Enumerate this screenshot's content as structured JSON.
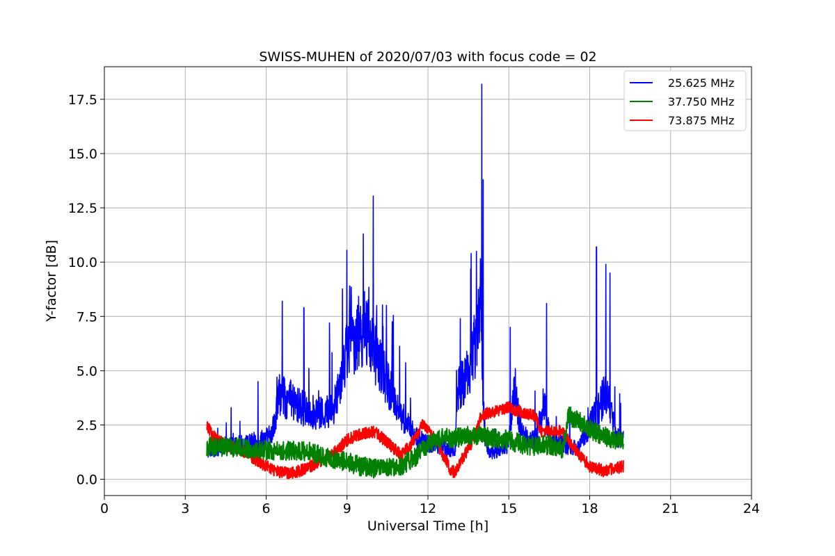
{
  "chart_data": {
    "type": "line",
    "title": "SWISS-MUHEN of 2020/07/03 with focus code = 02",
    "xlabel": "Universal Time [h]",
    "ylabel": "Y-factor [dB]",
    "xlim": [
      0,
      24
    ],
    "ylim": [
      -0.75,
      19.0
    ],
    "xticks": [
      0,
      3,
      6,
      9,
      12,
      15,
      18,
      21,
      24
    ],
    "xtick_labels": [
      "0",
      "3",
      "6",
      "9",
      "12",
      "15",
      "18",
      "21",
      "24"
    ],
    "yticks": [
      0.0,
      2.5,
      5.0,
      7.5,
      10.0,
      12.5,
      15.0,
      17.5
    ],
    "ytick_labels": [
      "0.0",
      "2.5",
      "5.0",
      "7.5",
      "10.0",
      "12.5",
      "15.0",
      "17.5"
    ],
    "grid": true,
    "legend_position": "top-right",
    "series": [
      {
        "name": "25.625 MHz",
        "color": "#0000ff",
        "noise": 0.9,
        "x": [
          3.8,
          4.5,
          5.5,
          6.2,
          6.5,
          6.6,
          7.0,
          7.5,
          8.0,
          8.5,
          8.8,
          9.0,
          9.3,
          9.6,
          9.7,
          10.0,
          10.5,
          11.0,
          11.5,
          12.0,
          12.5,
          13.0,
          13.1,
          13.5,
          13.8,
          13.95,
          14.0,
          14.1,
          14.3,
          14.8,
          15.0,
          15.2,
          15.5,
          16.0,
          16.3,
          16.5,
          17.0,
          17.5,
          18.0,
          18.2,
          18.4,
          18.6,
          18.8,
          19.0,
          19.25
        ],
        "y": [
          1.3,
          1.5,
          1.7,
          2.0,
          4.0,
          3.8,
          3.5,
          3.2,
          3.0,
          3.2,
          5.0,
          6.0,
          6.5,
          7.0,
          6.8,
          6.0,
          4.5,
          3.0,
          2.0,
          1.6,
          1.5,
          1.2,
          4.0,
          5.0,
          6.5,
          9.0,
          6.0,
          2.0,
          1.2,
          1.4,
          1.6,
          4.0,
          2.0,
          1.8,
          3.5,
          2.0,
          1.6,
          1.4,
          2.5,
          3.0,
          3.5,
          4.0,
          3.0,
          2.0,
          1.8
        ],
        "peaks": [
          [
            4.7,
            3.3
          ],
          [
            5.7,
            4.5
          ],
          [
            6.6,
            8.2
          ],
          [
            7.4,
            7.9
          ],
          [
            8.35,
            7.2
          ],
          [
            9.1,
            8.9
          ],
          [
            9.6,
            11.3
          ],
          [
            10.1,
            8.0
          ],
          [
            13.2,
            7.4
          ],
          [
            13.6,
            10.4
          ],
          [
            13.8,
            10.5
          ],
          [
            14.0,
            18.2
          ],
          [
            14.05,
            13.8
          ],
          [
            15.05,
            7.0
          ],
          [
            16.4,
            8.1
          ],
          [
            18.25,
            10.7
          ],
          [
            18.6,
            9.9
          ],
          [
            18.75,
            9.5
          ],
          [
            19.15,
            3.5
          ]
        ]
      },
      {
        "name": "37.750 MHz",
        "color": "#008000",
        "noise": 0.45,
        "x": [
          3.8,
          4.5,
          5.5,
          6.5,
          7.5,
          8.5,
          9.0,
          9.5,
          10.0,
          10.5,
          11.0,
          11.5,
          12.0,
          12.5,
          13.0,
          13.5,
          14.0,
          14.5,
          15.0,
          15.5,
          16.0,
          16.5,
          17.0,
          17.2,
          17.5,
          18.0,
          18.5,
          19.0,
          19.25
        ],
        "y": [
          1.5,
          1.5,
          1.4,
          1.3,
          1.3,
          0.9,
          0.8,
          0.6,
          0.5,
          0.5,
          0.6,
          1.0,
          1.6,
          1.9,
          1.9,
          2.0,
          2.0,
          1.9,
          1.8,
          1.6,
          1.5,
          1.6,
          1.4,
          2.9,
          2.8,
          2.3,
          2.0,
          1.8,
          1.8
        ],
        "peaks": []
      },
      {
        "name": "73.875 MHz",
        "color": "#ff0000",
        "noise": 0.28,
        "x": [
          3.8,
          4.0,
          4.5,
          5.0,
          5.5,
          6.0,
          6.5,
          7.0,
          7.5,
          8.0,
          8.5,
          9.0,
          9.5,
          10.0,
          10.5,
          11.0,
          11.5,
          11.8,
          12.3,
          12.8,
          13.0,
          13.3,
          13.6,
          14.0,
          14.5,
          15.0,
          15.5,
          16.0,
          16.2,
          17.0,
          17.5,
          18.0,
          18.3,
          18.5,
          19.0,
          19.25
        ],
        "y": [
          2.5,
          2.0,
          1.6,
          1.4,
          1.0,
          0.6,
          0.3,
          0.3,
          0.5,
          0.8,
          1.2,
          1.8,
          2.1,
          2.2,
          1.7,
          1.1,
          1.8,
          2.5,
          1.8,
          0.5,
          0.3,
          1.0,
          1.6,
          3.0,
          3.1,
          3.3,
          3.1,
          2.9,
          2.2,
          2.2,
          1.3,
          0.6,
          0.5,
          0.4,
          0.5,
          0.6
        ],
        "peaks": []
      }
    ]
  }
}
